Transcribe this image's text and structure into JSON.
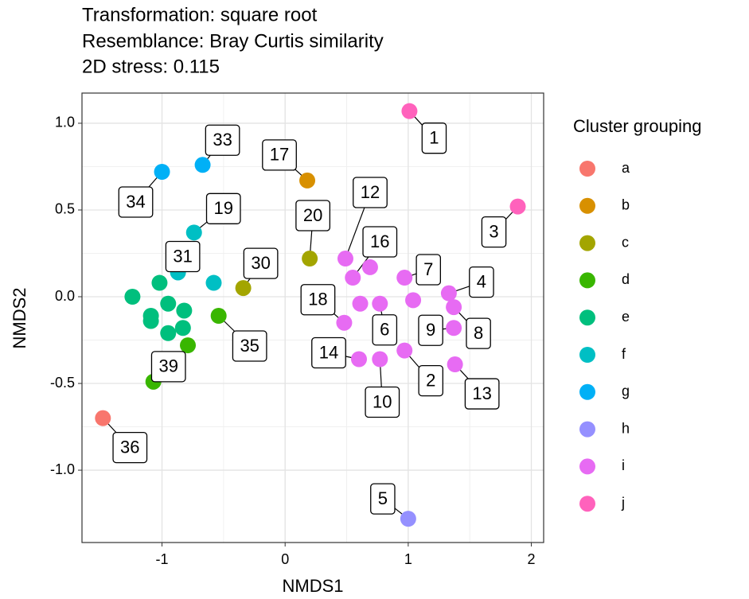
{
  "chart_data": {
    "type": "scatter",
    "title": "Transformation: square root",
    "subtitle": [
      "Resemblance: Bray Curtis similarity",
      "2D stress: 0.115"
    ],
    "x_label": "NMDS1",
    "y_label": "NMDS2",
    "legend_title": "Cluster grouping",
    "legend": "right",
    "grid": true,
    "xlim": [
      -1.65,
      2.1
    ],
    "ylim": [
      -1.417,
      1.174
    ],
    "xticks": [
      -1,
      0,
      1,
      2
    ],
    "yticks": [
      {
        "value": 1.0,
        "label": "1.0"
      },
      {
        "value": 0.5,
        "label": "0.5"
      },
      {
        "value": 0.0,
        "label": "0.0"
      },
      {
        "value": -0.5,
        "label": "-0.5"
      },
      {
        "value": -1.0,
        "label": "-1.0"
      }
    ],
    "series": [
      {
        "name": "a",
        "color": "#F8766D",
        "x": [
          -1.48
        ],
        "y": [
          -0.7
        ],
        "labels": [
          "36"
        ]
      },
      {
        "name": "b",
        "color": "#D89000",
        "x": [
          0.18
        ],
        "y": [
          0.67
        ],
        "labels": [
          "17"
        ]
      },
      {
        "name": "c",
        "color": "#A3A500",
        "x": [
          0.2,
          -0.34
        ],
        "y": [
          0.22,
          0.05
        ],
        "labels": [
          "20",
          "30"
        ]
      },
      {
        "name": "d",
        "color": "#39B600",
        "x": [
          -0.54,
          -1.07,
          -0.79
        ],
        "y": [
          -0.11,
          -0.49,
          -0.28
        ],
        "labels": [
          "35",
          "39",
          null
        ]
      },
      {
        "name": "e",
        "color": "#00BF7D",
        "x": [
          -1.24,
          -1.02,
          -0.95,
          -1.09,
          -1.09,
          -0.82,
          -0.95,
          -0.83
        ],
        "y": [
          0.0,
          0.08,
          -0.04,
          -0.11,
          -0.14,
          -0.08,
          -0.21,
          -0.18
        ],
        "labels": [
          null,
          null,
          null,
          null,
          null,
          null,
          null,
          null
        ]
      },
      {
        "name": "f",
        "color": "#00BFC4",
        "x": [
          -0.74,
          -0.87,
          -0.58
        ],
        "y": [
          0.37,
          0.14,
          0.08
        ],
        "labels": [
          "19",
          "31",
          null
        ]
      },
      {
        "name": "g",
        "color": "#00B0F6",
        "x": [
          -1.0,
          -0.67
        ],
        "y": [
          0.72,
          0.76
        ],
        "labels": [
          "34",
          "33"
        ]
      },
      {
        "name": "h",
        "color": "#9590FF",
        "x": [
          1.0
        ],
        "y": [
          -1.28
        ],
        "labels": [
          "5"
        ]
      },
      {
        "name": "i",
        "color": "#E76BF3",
        "x": [
          0.49,
          0.55,
          0.69,
          0.97,
          1.33,
          1.37,
          1.04,
          0.61,
          0.77,
          0.48,
          1.37,
          0.6,
          0.77,
          0.97,
          1.38
        ],
        "y": [
          0.22,
          0.11,
          0.17,
          0.11,
          0.02,
          -0.06,
          -0.02,
          -0.04,
          -0.04,
          -0.15,
          -0.18,
          -0.36,
          -0.36,
          -0.31,
          -0.39
        ],
        "labels": [
          "12",
          "16",
          null,
          "7",
          "4",
          "8",
          null,
          null,
          "6",
          "18",
          "9",
          "14",
          "10",
          "2",
          "13"
        ]
      },
      {
        "name": "j",
        "color": "#FF62BC",
        "x": [
          1.01,
          1.89
        ],
        "y": [
          1.07,
          0.52
        ],
        "labels": [
          "1",
          "3"
        ]
      }
    ]
  }
}
